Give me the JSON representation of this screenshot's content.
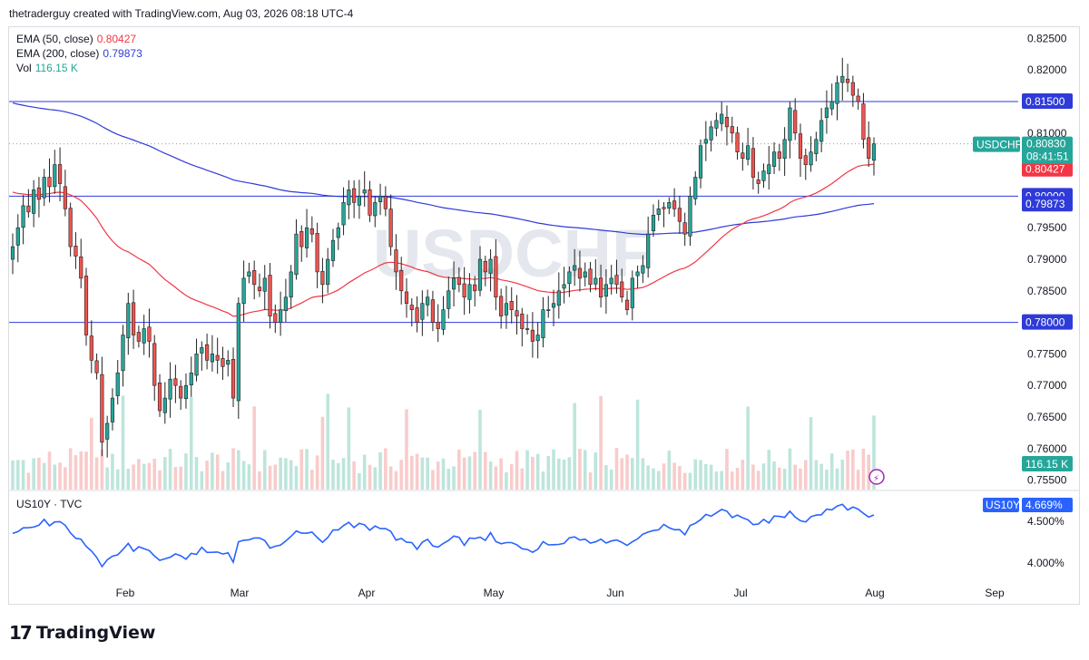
{
  "header": {
    "credit": "thetraderguy created with TradingView.com, Aug 03, 2026 08:18 UTC-4"
  },
  "legend": {
    "ema50": {
      "label": "EMA (50, close)",
      "value": "0.80427",
      "color": "#f23645"
    },
    "ema200": {
      "label": "EMA (200, close)",
      "value": "0.79873",
      "color": "#2f3bd8"
    },
    "vol": {
      "label": "Vol",
      "value": "116.15 K",
      "color": "#26a69a"
    }
  },
  "watermark": "USDCHF",
  "sub_pane": {
    "label": "US10Y · TVC",
    "badge_symbol": "US10Y",
    "badge_value": "4.669%"
  },
  "price_badges": {
    "symbol": "USDCHF",
    "last": "0.80830",
    "countdown": "08:41:51",
    "ema50": "0.80427",
    "ema200": "0.79873",
    "level_815": "0.81500",
    "level_800": "0.80000",
    "level_780": "0.78000",
    "vol": "116.15 K"
  },
  "footer": {
    "brand": "TradingView"
  },
  "chart_data": [
    {
      "type": "candlestick",
      "symbol": "USDCHF",
      "ylim": [
        0.7535,
        0.8265
      ],
      "y_ticks": [
        "0.82500",
        "0.82000",
        "0.81500",
        "0.81000",
        "0.80500",
        "0.80000",
        "0.79500",
        "0.79000",
        "0.78500",
        "0.78000",
        "0.77500",
        "0.77000",
        "0.76500",
        "0.76000",
        "0.75500"
      ],
      "x_ticks": [
        "Feb",
        "Mar",
        "Apr",
        "May",
        "Jun",
        "Jul",
        "Aug",
        "Sep"
      ],
      "horizontal_levels": [
        0.815,
        0.8,
        0.78
      ],
      "ema50_last": 0.80427,
      "ema200_last": 0.79873,
      "last_price": 0.8083,
      "vol_last": "116.15 K",
      "closes": [
        0.792,
        0.795,
        0.7985,
        0.7975,
        0.801,
        0.7995,
        0.803,
        0.8015,
        0.805,
        0.802,
        0.798,
        0.792,
        0.7905,
        0.787,
        0.778,
        0.774,
        0.772,
        0.761,
        0.764,
        0.768,
        0.772,
        0.778,
        0.783,
        0.778,
        0.777,
        0.779,
        0.777,
        0.77,
        0.766,
        0.768,
        0.771,
        0.77,
        0.768,
        0.77,
        0.772,
        0.775,
        0.776,
        0.774,
        0.775,
        0.774,
        0.773,
        0.774,
        0.768,
        0.783,
        0.787,
        0.788,
        0.786,
        0.785,
        0.787,
        0.781,
        0.78,
        0.782,
        0.784,
        0.788,
        0.794,
        0.792,
        0.795,
        0.794,
        0.788,
        0.786,
        0.79,
        0.793,
        0.795,
        0.799,
        0.801,
        0.799,
        0.8,
        0.801,
        0.797,
        0.799,
        0.8,
        0.798,
        0.792,
        0.788,
        0.785,
        0.783,
        0.782,
        0.78,
        0.783,
        0.784,
        0.78,
        0.779,
        0.782,
        0.785,
        0.787,
        0.786,
        0.784,
        0.786,
        0.785,
        0.79,
        0.788,
        0.79,
        0.784,
        0.781,
        0.783,
        0.782,
        0.781,
        0.779,
        0.779,
        0.777,
        0.778,
        0.782,
        0.782,
        0.783,
        0.785,
        0.786,
        0.788,
        0.789,
        0.787,
        0.788,
        0.786,
        0.787,
        0.784,
        0.786,
        0.787,
        0.786,
        0.784,
        0.782,
        0.787,
        0.788,
        0.789,
        0.794,
        0.797,
        0.798,
        0.798,
        0.799,
        0.798,
        0.796,
        0.794,
        0.8,
        0.803,
        0.808,
        0.809,
        0.811,
        0.812,
        0.813,
        0.811,
        0.81,
        0.807,
        0.806,
        0.808,
        0.803,
        0.802,
        0.804,
        0.805,
        0.807,
        0.806,
        0.809,
        0.814,
        0.81,
        0.806,
        0.805,
        0.807,
        0.809,
        0.812,
        0.814,
        0.815,
        0.818,
        0.819,
        0.818,
        0.816,
        0.815,
        0.809,
        0.806,
        0.8083
      ]
    },
    {
      "type": "line",
      "symbol": "US10Y",
      "series_last": "4.669%",
      "y_ticks": [
        "4.500%",
        "4.000%"
      ],
      "ylim": [
        3.75,
        4.85
      ]
    }
  ]
}
